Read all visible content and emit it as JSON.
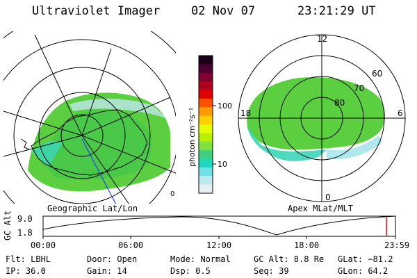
{
  "header": {
    "instrument": "Ultraviolet Imager",
    "date": "02 Nov 07",
    "time": "23:21:29 UT"
  },
  "geo_map": {
    "label": "Geographic Lat/Lon",
    "edge_label": "0"
  },
  "apex_map": {
    "label": "Apex MLat/MLT",
    "mlt_labels": {
      "top": "12",
      "bottom": "0",
      "left": "18",
      "right": "6"
    },
    "lat_labels": [
      "80",
      "70",
      "60"
    ]
  },
  "colorbar": {
    "unit_label": "photon cm⁻²s⁻¹",
    "ticks": [
      "100",
      "10"
    ],
    "colors": [
      "#1a001a",
      "#4d0033",
      "#800030",
      "#b00020",
      "#e00000",
      "#ff5000",
      "#ff9900",
      "#ffd000",
      "#e6ff00",
      "#b8f000",
      "#80e040",
      "#40d080",
      "#20d8c0",
      "#70e0e8",
      "#c0e8f0",
      "#e8f0f4"
    ]
  },
  "timeline": {
    "axis_label": "GC Alt",
    "y_ticks": [
      "9.0",
      "1.8"
    ],
    "x_ticks": [
      "00:00",
      "06:00",
      "12:00",
      "18:00",
      "23:59"
    ],
    "marker_color": "#ff0000"
  },
  "status": {
    "flt": "Flt: LBHL",
    "ip": "IP: 36.0",
    "door": "Door: Open",
    "gain": "Gain: 14",
    "mode": "Mode: Normal",
    "dsp": "Dsp:   0.5",
    "gc_alt": "GC Alt: 8.8 Re",
    "seq": "Seq: 39",
    "glat": "GLat: −81.2",
    "glon": "GLon:  64.2"
  }
}
